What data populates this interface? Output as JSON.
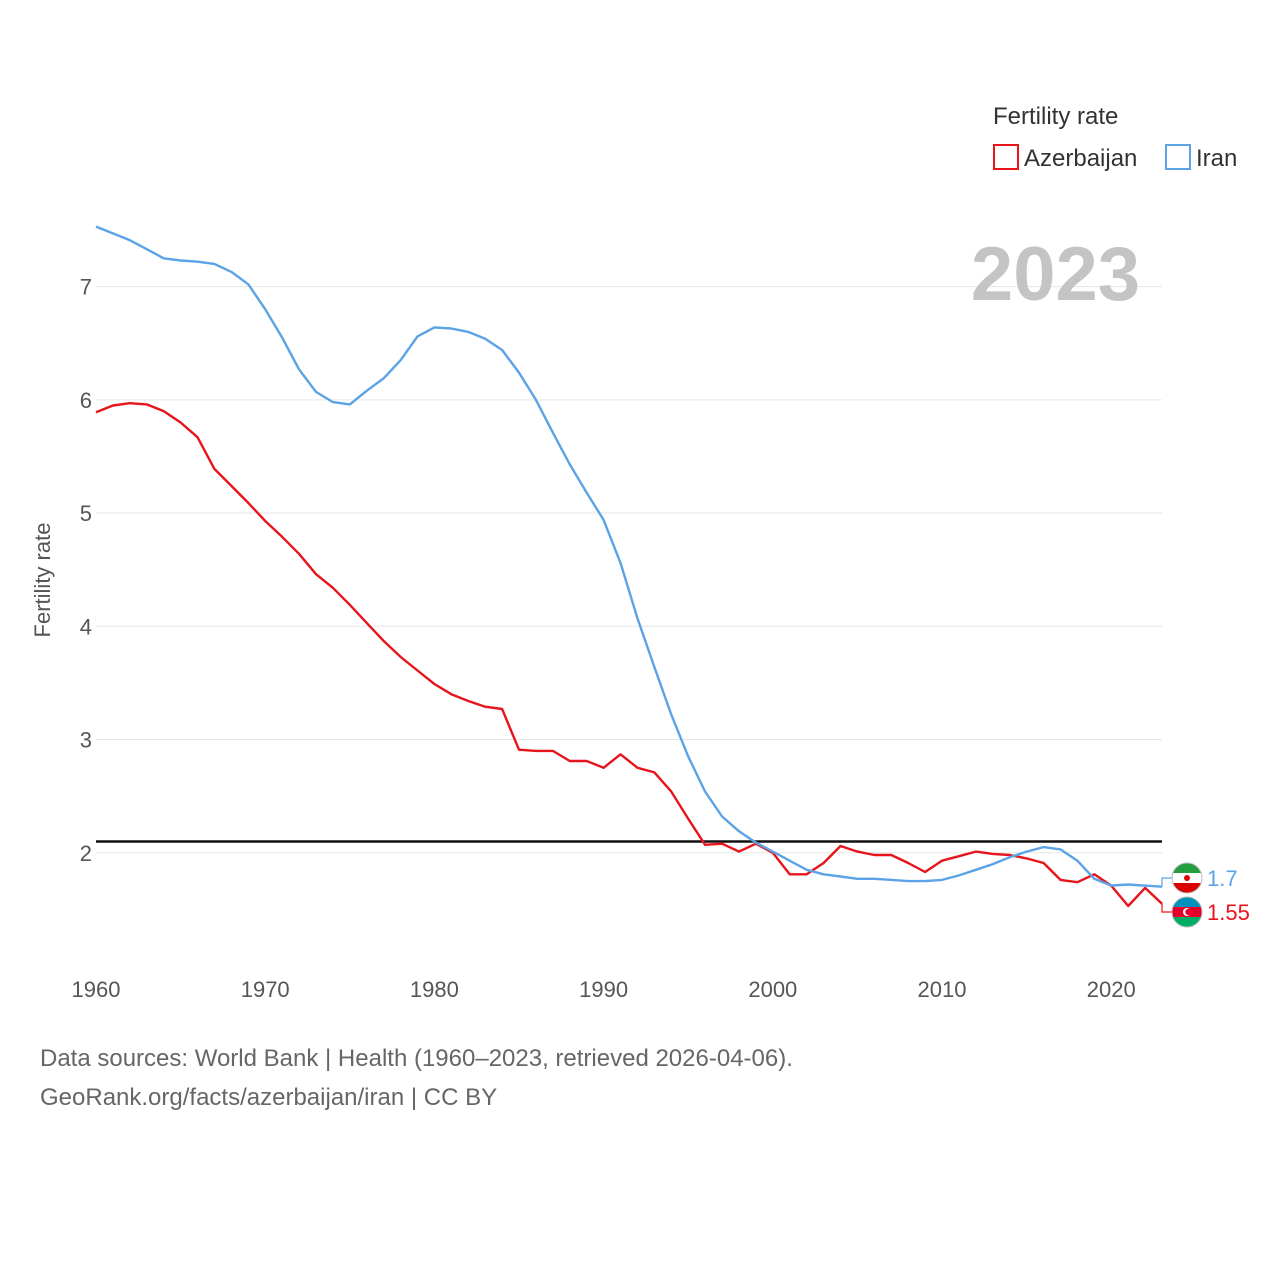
{
  "chart_data": {
    "type": "line",
    "title": "Fertility rate",
    "ylabel": "Fertility rate",
    "xlabel": "",
    "year_label": "2023",
    "xlim": [
      1960,
      2023
    ],
    "ylim": [
      1.0,
      7.8
    ],
    "x_ticks": [
      1960,
      1970,
      1980,
      1990,
      2000,
      2010,
      2020
    ],
    "y_ticks": [
      2,
      3,
      4,
      5,
      6,
      7
    ],
    "reference_line": 2.1,
    "legend_title": "Fertility rate",
    "x": [
      1960,
      1961,
      1962,
      1963,
      1964,
      1965,
      1966,
      1967,
      1968,
      1969,
      1970,
      1971,
      1972,
      1973,
      1974,
      1975,
      1976,
      1977,
      1978,
      1979,
      1980,
      1981,
      1982,
      1983,
      1984,
      1985,
      1986,
      1987,
      1988,
      1989,
      1990,
      1991,
      1992,
      1993,
      1994,
      1995,
      1996,
      1997,
      1998,
      1999,
      2000,
      2001,
      2002,
      2003,
      2004,
      2005,
      2006,
      2007,
      2008,
      2009,
      2010,
      2011,
      2012,
      2013,
      2014,
      2015,
      2016,
      2017,
      2018,
      2019,
      2020,
      2021,
      2022,
      2023
    ],
    "series": [
      {
        "name": "Azerbaijan",
        "color": "#e8141c",
        "end_label": "1.55",
        "values": [
          5.89,
          5.95,
          5.97,
          5.96,
          5.9,
          5.8,
          5.67,
          5.39,
          5.24,
          5.09,
          4.93,
          4.79,
          4.64,
          4.46,
          4.34,
          4.19,
          4.03,
          3.87,
          3.73,
          3.61,
          3.49,
          3.4,
          3.34,
          3.29,
          3.27,
          2.91,
          2.9,
          2.9,
          2.81,
          2.81,
          2.75,
          2.87,
          2.75,
          2.71,
          2.54,
          2.3,
          2.07,
          2.08,
          2.01,
          2.08,
          2.0,
          1.81,
          1.81,
          1.91,
          2.06,
          2.01,
          1.98,
          1.98,
          1.91,
          1.83,
          1.93,
          1.97,
          2.01,
          1.99,
          1.98,
          1.95,
          1.91,
          1.76,
          1.74,
          1.81,
          1.71,
          1.53,
          1.69,
          1.55
        ]
      },
      {
        "name": "Iran",
        "color": "#5ba3e6",
        "end_label": "1.7",
        "values": [
          7.53,
          7.47,
          7.41,
          7.33,
          7.25,
          7.23,
          7.22,
          7.2,
          7.13,
          7.02,
          6.8,
          6.55,
          6.27,
          6.07,
          5.98,
          5.96,
          6.08,
          6.19,
          6.35,
          6.56,
          6.64,
          6.63,
          6.6,
          6.54,
          6.44,
          6.24,
          6.0,
          5.71,
          5.43,
          5.18,
          4.94,
          4.56,
          4.07,
          3.64,
          3.22,
          2.85,
          2.54,
          2.32,
          2.19,
          2.09,
          2.01,
          1.93,
          1.85,
          1.81,
          1.79,
          1.77,
          1.77,
          1.76,
          1.75,
          1.75,
          1.76,
          1.8,
          1.85,
          1.9,
          1.96,
          2.01,
          2.05,
          2.03,
          1.93,
          1.77,
          1.71,
          1.72,
          1.71,
          1.7
        ]
      }
    ]
  },
  "footer": {
    "line1": "Data sources: World Bank | Health (1960–2023, retrieved 2026-04-06).",
    "line2": "GeoRank.org/facts/azerbaijan/iran | CC BY"
  }
}
